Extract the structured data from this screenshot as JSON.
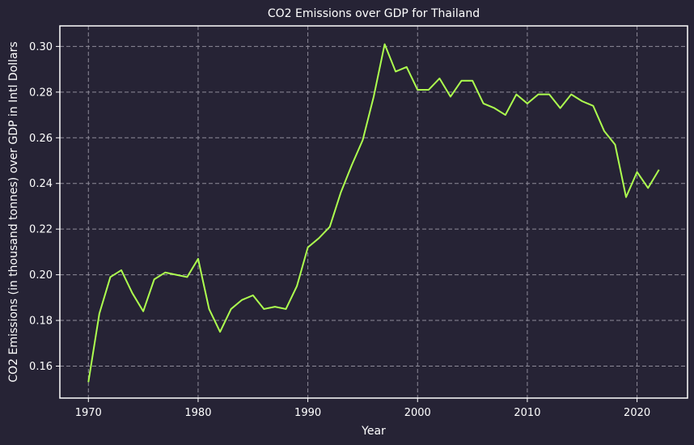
{
  "chart_data": {
    "type": "line",
    "title": "CO2 Emissions over GDP for Thailand",
    "xlabel": "Year",
    "ylabel": "CO2 Emissions (in thousand tonnes) over GDP in Intl Dollars",
    "xlim": [
      1967.4,
      2024.6
    ],
    "ylim": [
      0.146,
      0.309
    ],
    "xticks": [
      1970,
      1980,
      1990,
      2000,
      2010,
      2020
    ],
    "yticks": [
      0.16,
      0.18,
      0.2,
      0.22,
      0.24,
      0.26,
      0.28,
      0.3
    ],
    "ytick_labels": [
      "0.16",
      "0.18",
      "0.20",
      "0.22",
      "0.24",
      "0.26",
      "0.28",
      "0.30"
    ],
    "grid": true,
    "series": [
      {
        "color": "#adff4f",
        "x": [
          1970,
          1971,
          1972,
          1973,
          1974,
          1975,
          1976,
          1977,
          1978,
          1979,
          1980,
          1981,
          1982,
          1983,
          1984,
          1985,
          1986,
          1987,
          1988,
          1989,
          1990,
          1991,
          1992,
          1993,
          1994,
          1995,
          1996,
          1997,
          1998,
          1999,
          2000,
          2001,
          2002,
          2003,
          2004,
          2005,
          2006,
          2007,
          2008,
          2009,
          2010,
          2011,
          2012,
          2013,
          2014,
          2015,
          2016,
          2017,
          2018,
          2019,
          2020,
          2021,
          2022
        ],
        "y": [
          0.153,
          0.183,
          0.199,
          0.202,
          0.192,
          0.184,
          0.198,
          0.201,
          0.2,
          0.199,
          0.207,
          0.185,
          0.175,
          0.185,
          0.189,
          0.191,
          0.185,
          0.186,
          0.185,
          0.195,
          0.212,
          0.216,
          0.221,
          0.236,
          0.248,
          0.259,
          0.278,
          0.301,
          0.289,
          0.291,
          0.281,
          0.281,
          0.286,
          0.278,
          0.285,
          0.285,
          0.275,
          0.273,
          0.27,
          0.279,
          0.275,
          0.279,
          0.279,
          0.273,
          0.279,
          0.276,
          0.274,
          0.263,
          0.257,
          0.234,
          0.245,
          0.238,
          0.246
        ]
      }
    ]
  }
}
